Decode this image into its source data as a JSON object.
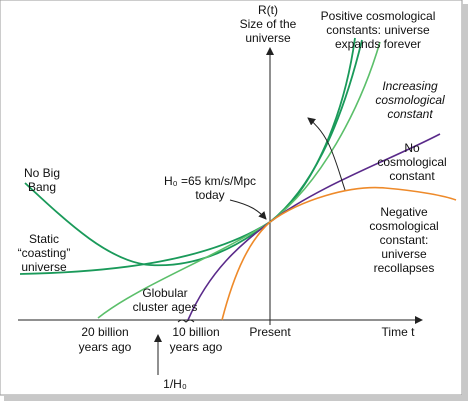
{
  "axis_label_y": [
    "R(t)",
    "Size of the",
    "universe"
  ],
  "axis_label_x": "Time  t",
  "curve_labels": {
    "positive": [
      "Positive cosmological",
      "constants: universe",
      "expands forever"
    ],
    "increasing": [
      "Increasing",
      "cosmological",
      "constant"
    ],
    "none": [
      "No",
      "cosmological",
      "constant"
    ],
    "negative": [
      "Negative",
      "cosmological",
      "constant:",
      "universe",
      "recollapses"
    ],
    "no_big_bang": [
      "No Big",
      "Bang"
    ],
    "static": [
      "Static",
      "“coasting”",
      "universe"
    ]
  },
  "annotations": {
    "hubble": [
      "H₀ =65 km/s/Mpc",
      "today"
    ],
    "globular": [
      "Globular",
      "cluster ages"
    ],
    "inverse_hubble": "1/H₀"
  },
  "time_labels": [
    [
      "20 billion",
      "years ago"
    ],
    [
      "10 billion",
      "years ago"
    ],
    [
      "Present"
    ]
  ]
}
